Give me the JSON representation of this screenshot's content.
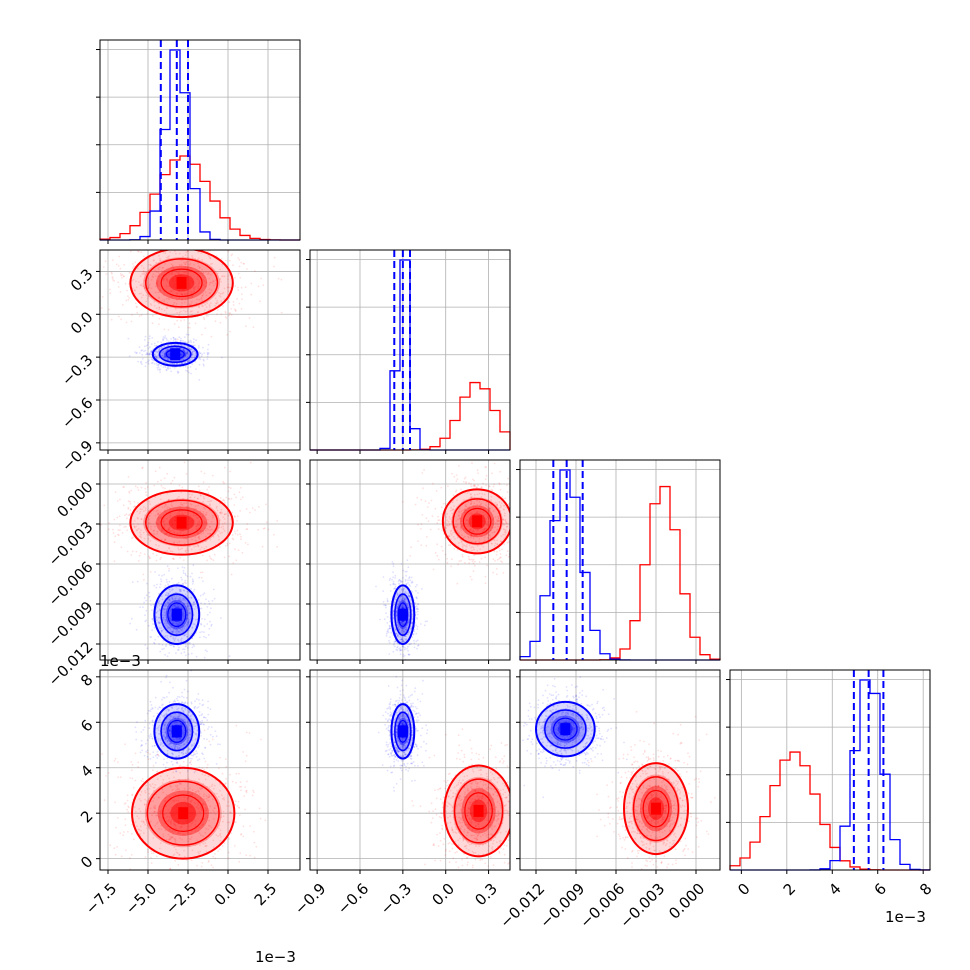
{
  "chart_data": {
    "type": "corner",
    "grid": true,
    "series": [
      {
        "name": "",
        "color": "#ff0000",
        "params": [
          {
            "mean": -2.8,
            "sd": 1.6
          },
          {
            "mean": 0.22,
            "sd": 0.12
          },
          {
            "mean": -0.0025,
            "sd": 0.0012
          },
          {
            "mean": 2.3,
            "sd": 1.0
          }
        ],
        "pairs": [
          {
            "i": 1,
            "j": 0,
            "contour_center": [
              -2.9,
              0.22
            ]
          },
          {
            "i": 2,
            "j": 0,
            "contour_center": [
              -2.9,
              -0.0029
            ]
          },
          {
            "i": 2,
            "j": 1,
            "contour_center": [
              0.22,
              -0.0028
            ]
          },
          {
            "i": 3,
            "j": 0,
            "contour_center": [
              -2.8,
              2.0
            ]
          },
          {
            "i": 3,
            "j": 1,
            "contour_center": [
              0.23,
              2.1
            ]
          },
          {
            "i": 3,
            "j": 2,
            "contour_center": [
              -0.003,
              2.2
            ]
          }
        ]
      },
      {
        "name": "",
        "color": "#0000ff",
        "params": [
          {
            "mean": -3.2,
            "sd": 0.7
          },
          {
            "mean": -0.3,
            "sd": 0.04
          },
          {
            "mean": -0.0097,
            "sd": 0.0011
          },
          {
            "mean": 5.6,
            "sd": 0.6
          }
        ],
        "quantiles": [
          [
            -4.2,
            -3.2,
            -2.5
          ],
          [
            -0.36,
            -0.3,
            -0.25
          ],
          [
            -0.0107,
            -0.0097,
            -0.0085
          ],
          [
            4.95,
            5.6,
            6.25
          ]
        ],
        "pairs": [
          {
            "i": 1,
            "j": 0,
            "contour_center": [
              -3.3,
              -0.28
            ]
          },
          {
            "i": 2,
            "j": 0,
            "contour_center": [
              -3.2,
              -0.0098
            ]
          },
          {
            "i": 2,
            "j": 1,
            "contour_center": [
              -0.3,
              -0.0098
            ]
          },
          {
            "i": 3,
            "j": 0,
            "contour_center": [
              -3.2,
              5.6
            ]
          },
          {
            "i": 3,
            "j": 1,
            "contour_center": [
              -0.3,
              5.6
            ]
          },
          {
            "i": 3,
            "j": 2,
            "contour_center": [
              -0.0098,
              5.7
            ]
          }
        ]
      }
    ],
    "axes": [
      {
        "range": [
          -8.0,
          4.5
        ],
        "ticks": [
          -7.5,
          -5.0,
          -2.5,
          0.0,
          2.5
        ],
        "tick_labels": [
          "−7.5",
          "−5.0",
          "−2.5",
          "0.0",
          "2.5"
        ],
        "scale_label": "1e−3"
      },
      {
        "range": [
          -0.95,
          0.45
        ],
        "ticks": [
          -0.9,
          -0.6,
          -0.3,
          0.0,
          0.3
        ],
        "tick_labels": [
          "−0.9",
          "−0.6",
          "−0.3",
          "0.0",
          "0.3"
        ]
      },
      {
        "range": [
          -0.0132,
          0.0018
        ],
        "ticks": [
          -0.012,
          -0.009,
          -0.006,
          -0.003,
          0.0
        ],
        "tick_labels": [
          "−0.012",
          "−0.009",
          "−0.006",
          "−0.003",
          "0.000"
        ]
      },
      {
        "range": [
          -0.5,
          8.3
        ],
        "ticks": [
          0,
          2,
          4,
          6,
          8
        ],
        "tick_labels": [
          "0",
          "2",
          "4",
          "6",
          "8"
        ],
        "scale_label": "1e−3"
      }
    ],
    "histogram_bins": 20
  }
}
